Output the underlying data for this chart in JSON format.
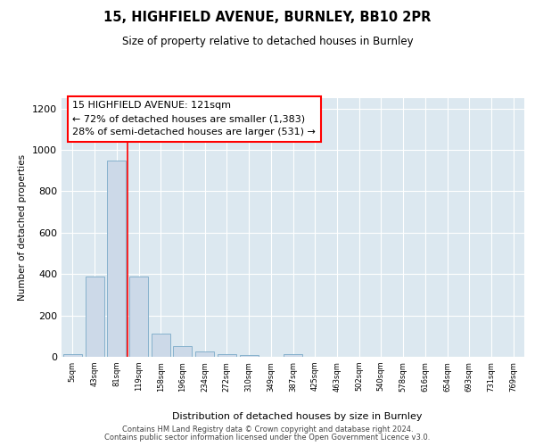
{
  "title1": "15, HIGHFIELD AVENUE, BURNLEY, BB10 2PR",
  "title2": "Size of property relative to detached houses in Burnley",
  "xlabel": "Distribution of detached houses by size in Burnley",
  "ylabel": "Number of detached properties",
  "categories": [
    "5sqm",
    "43sqm",
    "81sqm",
    "119sqm",
    "158sqm",
    "196sqm",
    "234sqm",
    "272sqm",
    "310sqm",
    "349sqm",
    "387sqm",
    "425sqm",
    "463sqm",
    "502sqm",
    "540sqm",
    "578sqm",
    "616sqm",
    "654sqm",
    "693sqm",
    "731sqm",
    "769sqm"
  ],
  "values": [
    15,
    390,
    950,
    390,
    110,
    50,
    25,
    15,
    10,
    0,
    15,
    0,
    0,
    0,
    0,
    0,
    0,
    0,
    0,
    0,
    0
  ],
  "bar_color": "#ccd9e8",
  "bar_edge_color": "#7aaac8",
  "red_line_x": 2.5,
  "annotation_line1": "15 HIGHFIELD AVENUE: 121sqm",
  "annotation_line2": "← 72% of detached houses are smaller (1,383)",
  "annotation_line3": "28% of semi-detached houses are larger (531) →",
  "ylim": [
    0,
    1250
  ],
  "yticks": [
    0,
    200,
    400,
    600,
    800,
    1000,
    1200
  ],
  "bg_color": "#dce8f0",
  "fig_bg_color": "#ffffff",
  "grid_color": "#ffffff",
  "footer1": "Contains HM Land Registry data © Crown copyright and database right 2024.",
  "footer2": "Contains public sector information licensed under the Open Government Licence v3.0."
}
